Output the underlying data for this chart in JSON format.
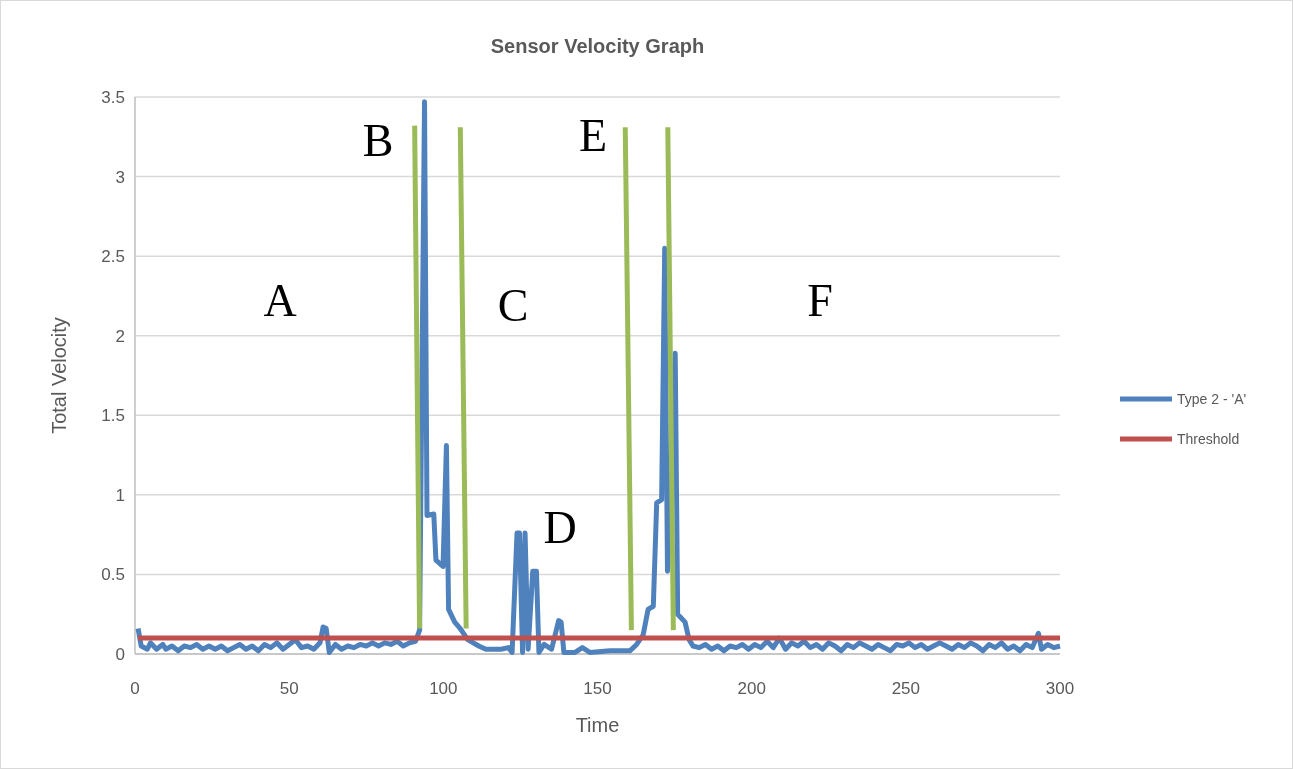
{
  "chart_data": {
    "type": "line",
    "title": "Sensor Velocity Graph",
    "xlabel": "Time",
    "ylabel": "Total Velocity",
    "xlim": [
      0,
      300
    ],
    "xticks": [
      0,
      50,
      100,
      150,
      200,
      250,
      300
    ],
    "ylim": [
      0,
      3.5
    ],
    "yticks": [
      0,
      0.5,
      1,
      1.5,
      2,
      2.5,
      3,
      3.5
    ],
    "grid": "y",
    "legend": "right",
    "marker": "none",
    "line_style": "solid",
    "series": [
      {
        "name": "Type 2 - 'A'",
        "color": "#4f81bd",
        "x": [
          1,
          2,
          4,
          5,
          7,
          9,
          10,
          12,
          14,
          16,
          18,
          20,
          22,
          24,
          26,
          28,
          30,
          32,
          34,
          36,
          38,
          40,
          42,
          44,
          46,
          48,
          50,
          52,
          54,
          56,
          58,
          60,
          61,
          62,
          63,
          65,
          67,
          69,
          71,
          73,
          75,
          77,
          79,
          81,
          83,
          85,
          87,
          89,
          91,
          92.3,
          93.9,
          94.7,
          96.9,
          97.6,
          99.9,
          101,
          101.7,
          103.7,
          105.5,
          107.9,
          111.5,
          113.8,
          118.7,
          121.1,
          122.3,
          123.9,
          124.7,
          125.7,
          126.5,
          127.5,
          129,
          130.2,
          131,
          132.7,
          135.1,
          137.4,
          138.2,
          139.1,
          142.7,
          145.1,
          147.5,
          154,
          160.5,
          162.7,
          164.8,
          166.4,
          168.1,
          169.2,
          170.8,
          171.8,
          172.7,
          175.2,
          176,
          178.4,
          179.7,
          181,
          183,
          185,
          187,
          189,
          191,
          193,
          195,
          197,
          199,
          201,
          203,
          205,
          207,
          209,
          211,
          213,
          215,
          217,
          219,
          221,
          223,
          225,
          227,
          229,
          231,
          233,
          235,
          237,
          239,
          241,
          243,
          245,
          247,
          249,
          251,
          253,
          255,
          257,
          259,
          261,
          263,
          265,
          267,
          269,
          271,
          273,
          275,
          277,
          279,
          281,
          283,
          285,
          287,
          289,
          291,
          293,
          294,
          296,
          298,
          300
        ],
        "values": [
          0.16,
          0.05,
          0.03,
          0.07,
          0.03,
          0.06,
          0.03,
          0.05,
          0.02,
          0.05,
          0.04,
          0.06,
          0.03,
          0.05,
          0.03,
          0.05,
          0.02,
          0.04,
          0.06,
          0.03,
          0.05,
          0.02,
          0.06,
          0.04,
          0.07,
          0.03,
          0.06,
          0.09,
          0.04,
          0.05,
          0.03,
          0.07,
          0.17,
          0.16,
          0.01,
          0.06,
          0.03,
          0.05,
          0.04,
          0.06,
          0.05,
          0.07,
          0.05,
          0.07,
          0.06,
          0.08,
          0.05,
          0.07,
          0.08,
          0.15,
          3.47,
          0.87,
          0.88,
          0.59,
          0.55,
          1.31,
          0.28,
          0.2,
          0.16,
          0.09,
          0.05,
          0.03,
          0.03,
          0.04,
          0.01,
          0.76,
          0.76,
          0.01,
          0.76,
          0.03,
          0.52,
          0.52,
          0.01,
          0.06,
          0.03,
          0.21,
          0.2,
          0.01,
          0.01,
          0.04,
          0.01,
          0.02,
          0.02,
          0.06,
          0.12,
          0.28,
          0.3,
          0.95,
          0.97,
          2.55,
          0.52,
          1.89,
          0.25,
          0.2,
          0.09,
          0.05,
          0.04,
          0.06,
          0.03,
          0.05,
          0.02,
          0.05,
          0.04,
          0.06,
          0.03,
          0.06,
          0.04,
          0.08,
          0.04,
          0.1,
          0.03,
          0.07,
          0.05,
          0.08,
          0.04,
          0.06,
          0.03,
          0.07,
          0.05,
          0.02,
          0.06,
          0.04,
          0.07,
          0.05,
          0.03,
          0.06,
          0.04,
          0.02,
          0.06,
          0.05,
          0.07,
          0.04,
          0.06,
          0.03,
          0.05,
          0.07,
          0.05,
          0.03,
          0.06,
          0.04,
          0.07,
          0.05,
          0.02,
          0.06,
          0.04,
          0.07,
          0.03,
          0.05,
          0.02,
          0.06,
          0.04,
          0.13,
          0.03,
          0.06,
          0.04,
          0.05
        ]
      },
      {
        "name": "Threshold",
        "color": "#c0504d",
        "x": [
          1,
          300
        ],
        "values": [
          0.1,
          0.1
        ]
      },
      {
        "color": "#9bbb59",
        "x": [
          90.7,
          92.3
        ],
        "values": [
          3.32,
          0.16
        ]
      },
      {
        "color": "#9bbb59",
        "x": [
          105.5,
          107.4
        ],
        "values": [
          3.31,
          0.16
        ]
      },
      {
        "color": "#9bbb59",
        "x": [
          159,
          161
        ],
        "values": [
          3.31,
          0.15
        ]
      },
      {
        "color": "#9bbb59",
        "x": [
          172.8,
          174.6
        ],
        "values": [
          3.31,
          0.15
        ]
      }
    ],
    "annotations": [
      "A",
      "B",
      "C",
      "D",
      "E",
      "F"
    ]
  }
}
